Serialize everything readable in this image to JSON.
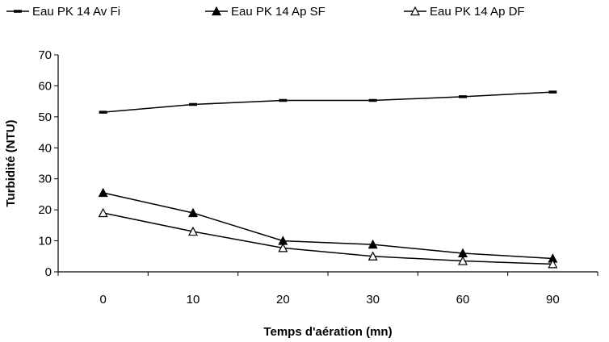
{
  "chart_data": {
    "type": "line",
    "categories": [
      "0",
      "10",
      "20",
      "30",
      "60",
      "90"
    ],
    "series": [
      {
        "name": "Eau PK 14 Av Fi",
        "marker": "dash",
        "values": [
          51.5,
          54,
          55.3,
          55.3,
          56.5,
          58
        ]
      },
      {
        "name": "Eau PK 14 Ap SF",
        "marker": "filled-triangle",
        "values": [
          25.5,
          19,
          10,
          8.8,
          6,
          4.3
        ]
      },
      {
        "name": "Eau PK 14 Ap DF",
        "marker": "open-triangle",
        "values": [
          19,
          13,
          7.7,
          5,
          3.5,
          2.5
        ]
      }
    ],
    "title": "",
    "xlabel": "Temps d'aération (mn)",
    "ylabel": "Turbidité (NTU)",
    "ylim": [
      0,
      70
    ],
    "yticks": [
      0,
      10,
      20,
      30,
      40,
      50,
      60,
      70
    ],
    "grid": false,
    "legend_position": "top",
    "line_color": "#000000"
  }
}
